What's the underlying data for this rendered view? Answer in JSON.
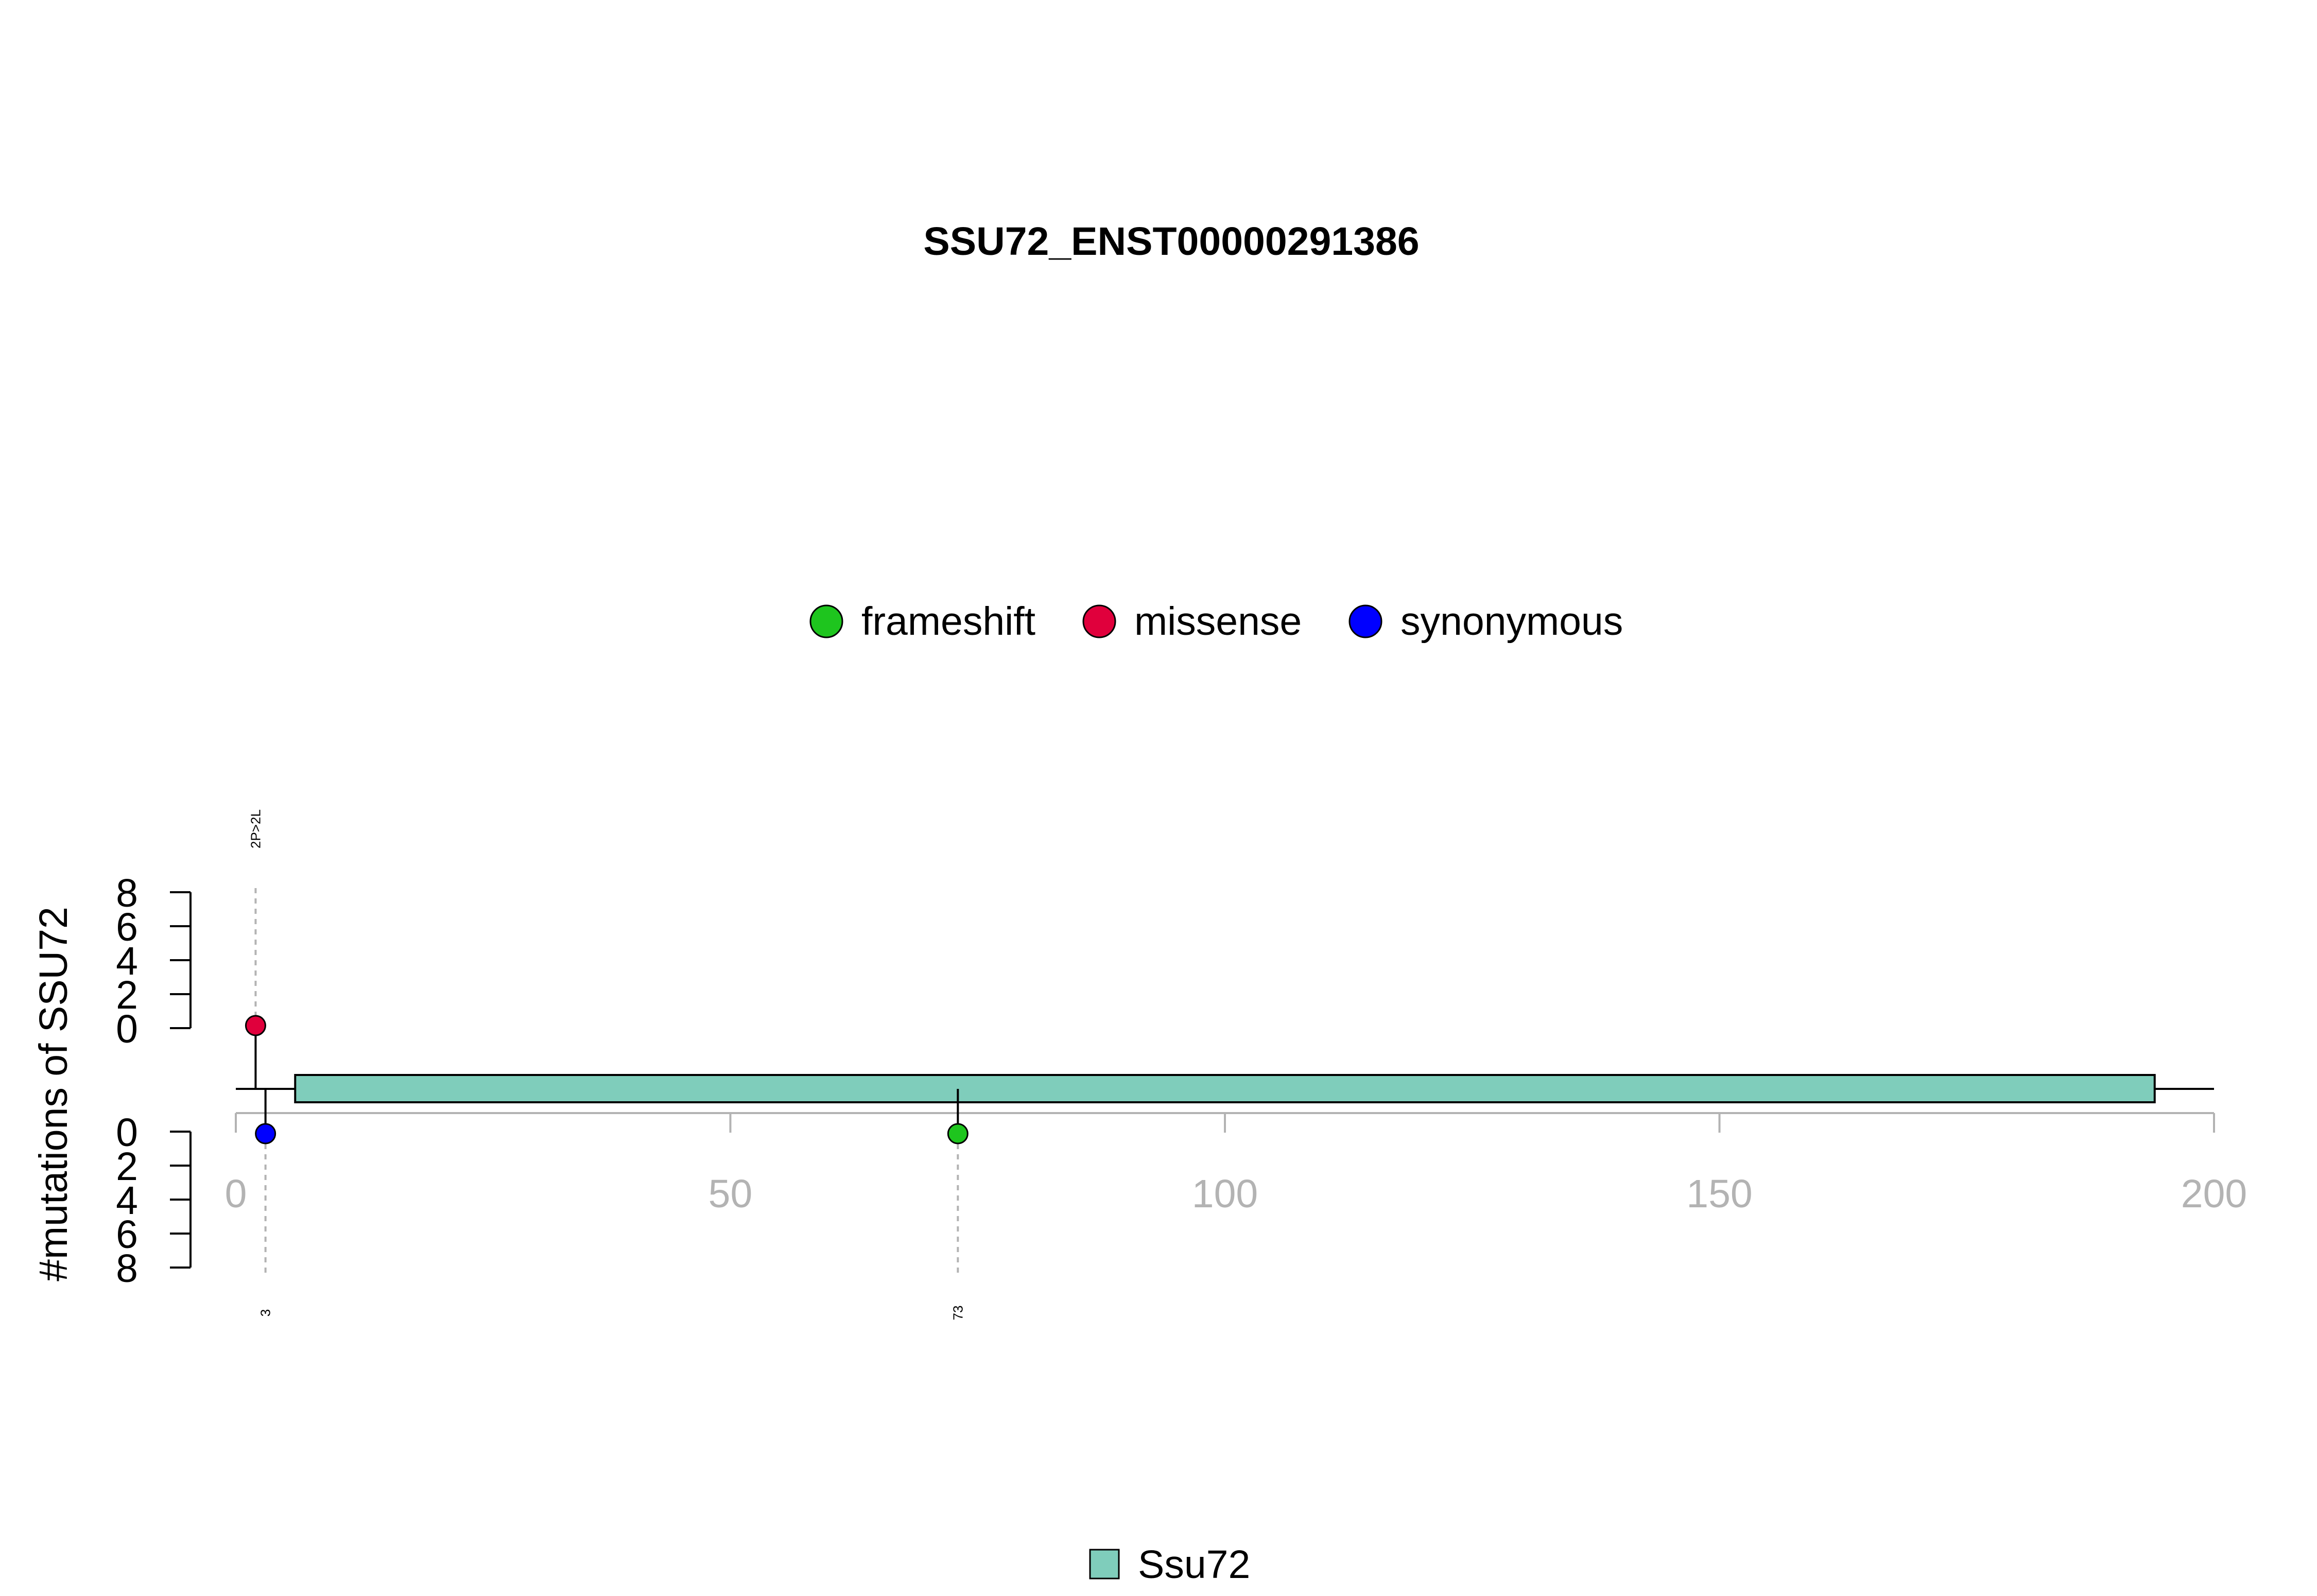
{
  "chart_data": {
    "type": "lollipop",
    "title": "SSU72_ENST00000291386",
    "ylabel": "#mutations of SSU72",
    "xlim": [
      0,
      200
    ],
    "x_ticks": [
      0,
      50,
      100,
      150,
      200
    ],
    "ylim_top": [
      0,
      8
    ],
    "ylim_bottom": [
      0,
      8
    ],
    "y_ticks": [
      0,
      2,
      4,
      6,
      8
    ],
    "legend_top": [
      {
        "label": "frameshift",
        "color": "#1ec51e"
      },
      {
        "label": "missense",
        "color": "#e0003c"
      },
      {
        "label": "synonymous",
        "color": "#0000ff"
      }
    ],
    "mutations": [
      {
        "position": 2,
        "count": 1,
        "type": "missense",
        "side": "top",
        "label": "2P>2L"
      },
      {
        "position": 3,
        "count": 1,
        "type": "synonymous",
        "side": "bottom",
        "label": "3"
      },
      {
        "position": 73,
        "count": 1,
        "type": "frameshift",
        "side": "bottom",
        "label": "73"
      }
    ],
    "domains": [
      {
        "name": "Ssu72",
        "start": 6,
        "end": 194,
        "color": "#7fcdbb"
      }
    ],
    "legend_bottom": [
      {
        "label": "Ssu72",
        "color": "#7fcdbb"
      }
    ]
  }
}
